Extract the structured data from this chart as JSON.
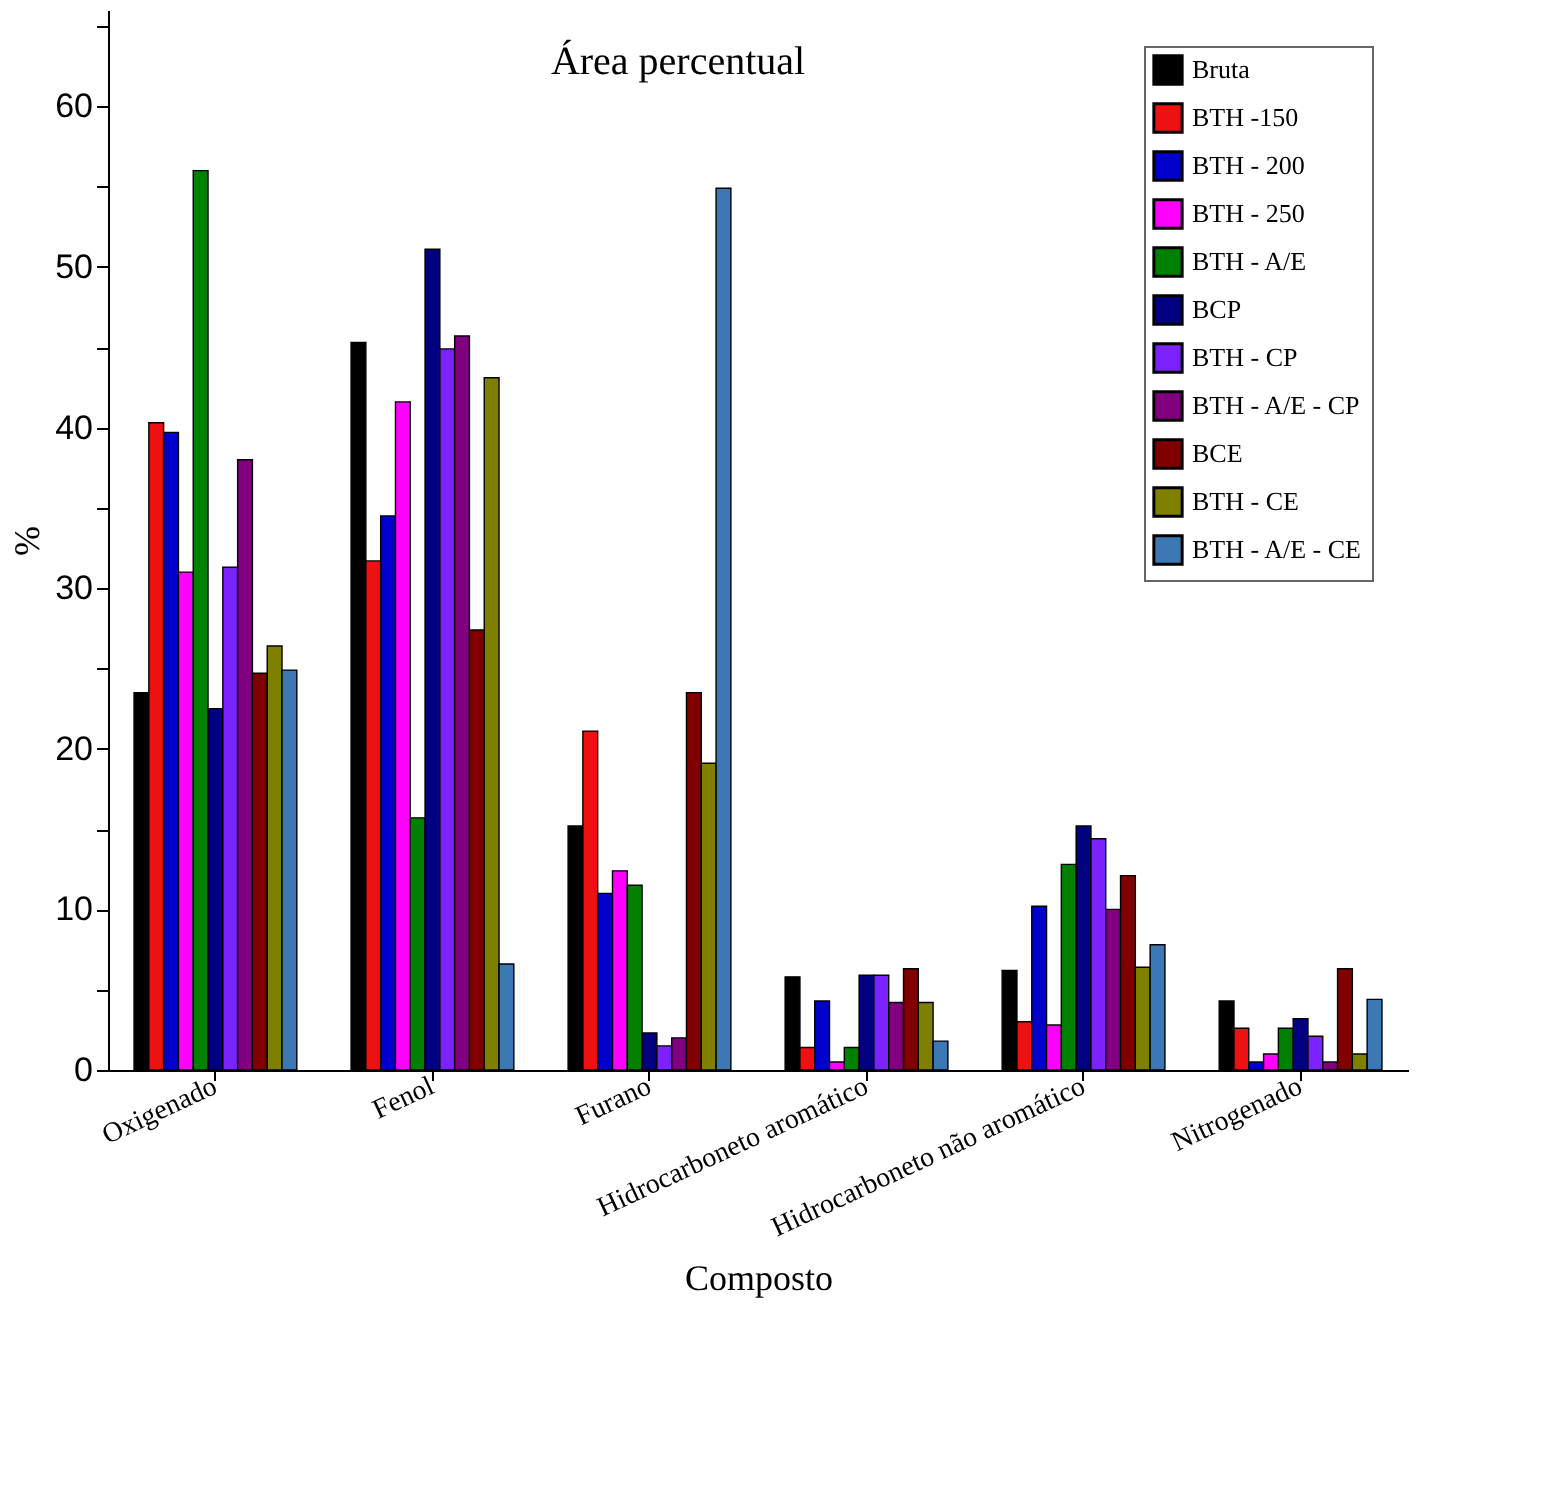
{
  "chart_data": {
    "type": "bar",
    "title": "Área percentual",
    "xlabel": "Composto",
    "ylabel": "%",
    "categories": [
      "Oxigenado",
      "Fenol",
      "Furano",
      "Hidrocarboneto aromático",
      "Hidrocarboneto não aromático",
      "Nitrogenado"
    ],
    "series": [
      {
        "name": "Bruta",
        "color": "#000000",
        "values": [
          23.5,
          45.3,
          15.2,
          5.8,
          6.2,
          4.3
        ]
      },
      {
        "name": "BTH -150",
        "color": "#ee1111",
        "values": [
          40.3,
          31.7,
          21.1,
          1.4,
          3.0,
          2.6
        ]
      },
      {
        "name": "BTH - 200",
        "color": "#0000cc",
        "values": [
          39.7,
          34.5,
          11.0,
          4.3,
          10.2,
          0.5
        ]
      },
      {
        "name": "BTH - 250",
        "color": "#ff00ff",
        "values": [
          31.0,
          41.6,
          12.4,
          0.5,
          2.8,
          1.0
        ]
      },
      {
        "name": "BTH - A/E",
        "color": "#008000",
        "values": [
          56.0,
          15.7,
          11.5,
          1.4,
          12.8,
          2.6
        ]
      },
      {
        "name": "BCP",
        "color": "#000080",
        "values": [
          22.5,
          51.1,
          2.3,
          5.9,
          15.2,
          3.2
        ]
      },
      {
        "name": "BTH - CP",
        "color": "#7b22ff",
        "values": [
          31.3,
          44.9,
          1.5,
          5.9,
          14.4,
          2.1
        ]
      },
      {
        "name": "BTH - A/E - CP",
        "color": "#800080",
        "values": [
          38.0,
          45.7,
          2.0,
          4.2,
          10.0,
          0.5
        ]
      },
      {
        "name": "BCE",
        "color": "#800000",
        "values": [
          24.7,
          27.4,
          23.5,
          6.3,
          12.1,
          6.3
        ]
      },
      {
        "name": "BTH - CE",
        "color": "#808000",
        "values": [
          26.4,
          43.1,
          19.1,
          4.2,
          6.4,
          1.0
        ]
      },
      {
        "name": "BTH - A/E - CE",
        "color": "#3c78b4",
        "values": [
          24.9,
          6.6,
          54.9,
          1.8,
          7.8,
          4.4
        ]
      }
    ],
    "ylim": [
      0,
      66
    ],
    "yticks": [
      0,
      {
        "value": 5,
        "label": null
      },
      10,
      {
        "value": 15,
        "label": null
      },
      20,
      {
        "value": 25,
        "label": null
      },
      30,
      {
        "value": 35,
        "label": null
      },
      40,
      {
        "value": 45,
        "label": null
      },
      50,
      {
        "value": 55,
        "label": null
      },
      60,
      {
        "value": 65,
        "label": null
      }
    ],
    "grid": false,
    "legend": "top right"
  }
}
